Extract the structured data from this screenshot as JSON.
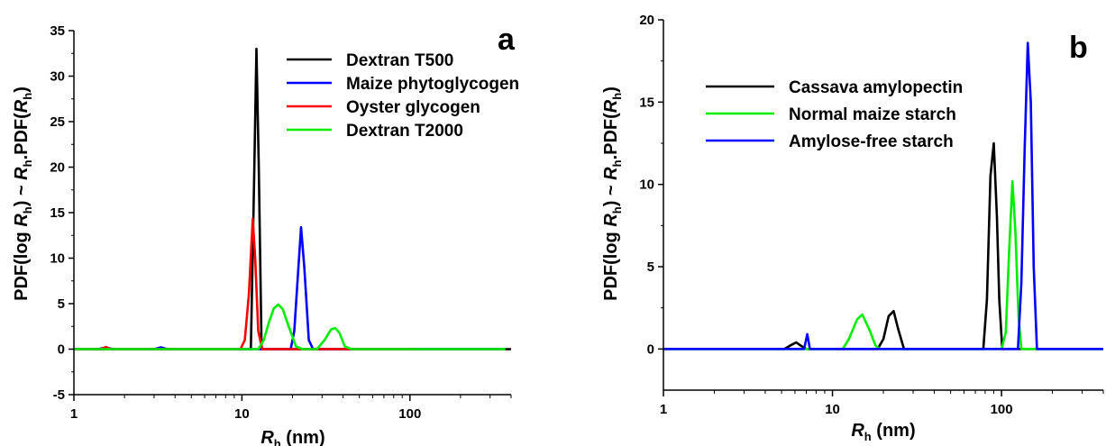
{
  "chart_data": [
    {
      "panel_label": "a",
      "type": "line",
      "x_scale": "log",
      "xlim": [
        1,
        400
      ],
      "ylim": [
        -5,
        35
      ],
      "xticks": [
        1,
        10,
        100
      ],
      "xtick_labels": [
        "1",
        "10",
        "100"
      ],
      "yticks": [
        -5,
        0,
        5,
        10,
        15,
        20,
        25,
        30,
        35
      ],
      "ytick_labels": [
        "-5",
        "0",
        "5",
        "10",
        "15",
        "20",
        "25",
        "30",
        "35"
      ],
      "xlabel": {
        "main": "R",
        "sub": "h",
        "rest": " (nm)"
      },
      "ylabel": {
        "p1": "PDF(log ",
        "r1": "R",
        "s1": "h",
        "p2": ") ~ ",
        "r2": "R",
        "s2": "h",
        "p3": ".PDF(",
        "r3": "R",
        "s3": "h",
        "p4": ")"
      },
      "legend_position": "top-right",
      "series": [
        {
          "name": "Dextran T500",
          "color": "#000000",
          "x": [
            1,
            10,
            11.3,
            11.8,
            12.2,
            12.6,
            13.1,
            14,
            400
          ],
          "y": [
            0,
            0,
            0,
            18,
            33,
            20,
            0,
            0,
            0
          ]
        },
        {
          "name": "Maize phytoglycogen",
          "color": "#0000ff",
          "x": [
            1,
            1.4,
            1.55,
            1.7,
            3.0,
            3.3,
            3.6,
            19.5,
            20.5,
            21.5,
            22.5,
            23.5,
            25,
            26.5,
            110,
            340
          ],
          "y": [
            0,
            0,
            0.2,
            0,
            0,
            0.2,
            0,
            0,
            2,
            8,
            13.4,
            9,
            1,
            0,
            0,
            0
          ]
        },
        {
          "name": "Oyster glycogen",
          "color": "#ff0000",
          "x": [
            1,
            1.45,
            1.55,
            1.65,
            9.8,
            10.4,
            11.0,
            11.6,
            12.0,
            12.5,
            13.2,
            110
          ],
          "y": [
            0,
            0,
            0.25,
            0,
            0,
            1,
            6,
            14.3,
            10,
            2,
            0,
            0
          ]
        },
        {
          "name": "Dextran T2000",
          "color": "#00ee00",
          "x": [
            1,
            12.5,
            13.5,
            14.5,
            15.5,
            16.5,
            17.5,
            19,
            21,
            23,
            28,
            31,
            34,
            36,
            38,
            41,
            45,
            370
          ],
          "y": [
            0,
            0,
            1,
            3,
            4.5,
            4.9,
            4.4,
            2.5,
            0.3,
            0,
            0,
            1,
            2.2,
            2.3,
            1.8,
            0.3,
            0,
            0
          ]
        }
      ]
    },
    {
      "panel_label": "b",
      "type": "line",
      "x_scale": "log",
      "xlim": [
        1,
        400
      ],
      "ylim": [
        -2.5,
        20
      ],
      "xticks": [
        1,
        10,
        100
      ],
      "xtick_labels": [
        "1",
        "10",
        "100"
      ],
      "yticks": [
        0,
        5,
        10,
        15,
        20
      ],
      "ytick_labels": [
        "0",
        "5",
        "10",
        "15",
        "20"
      ],
      "xlabel": {
        "main": "R",
        "sub": "h",
        "rest": " (nm)"
      },
      "ylabel": {
        "p1": "PDF(log ",
        "r1": "R",
        "s1": "h",
        "p2": ") ~ ",
        "r2": "R",
        "s2": "h",
        "p3": ".PDF(",
        "r3": "R",
        "s3": "h",
        "p4": ")"
      },
      "legend_position": "top-left",
      "series": [
        {
          "name": "Cassava amylopectin",
          "color": "#000000",
          "x": [
            1,
            5.2,
            5.6,
            6.1,
            6.5,
            7.0,
            18.5,
            20,
            21.5,
            23,
            24.5,
            26.5,
            78,
            82,
            86,
            90,
            94,
            97,
            101,
            400
          ],
          "y": [
            0,
            0,
            0.2,
            0.4,
            0.2,
            0,
            0,
            0.6,
            2,
            2.3,
            1.2,
            0,
            0,
            3,
            10.5,
            12.5,
            8,
            3,
            0,
            0
          ]
        },
        {
          "name": "Normal maize starch",
          "color": "#00ee00",
          "x": [
            1,
            11.5,
            12.5,
            14,
            15,
            16.5,
            18,
            19,
            100,
            106,
            111,
            116,
            121,
            126,
            131,
            400
          ],
          "y": [
            0,
            0,
            0.6,
            1.8,
            2.1,
            1.2,
            0.2,
            0,
            0,
            1,
            6,
            10.2,
            7,
            2,
            0,
            0
          ]
        },
        {
          "name": "Amylose-free starch",
          "color": "#0000ff",
          "x": [
            1,
            6.8,
            7.1,
            7.35,
            125,
            131,
            137,
            143,
            149,
            155,
            162,
            400
          ],
          "y": [
            0,
            0,
            0.9,
            0,
            0,
            4,
            12,
            18.6,
            15,
            5,
            0,
            0
          ]
        }
      ]
    }
  ]
}
